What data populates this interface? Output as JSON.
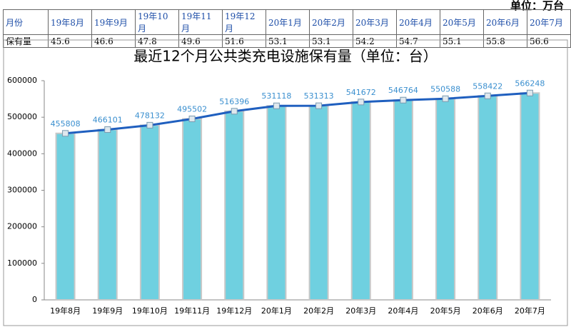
{
  "unit": "单位：万台",
  "table": {
    "rows": [
      [
        "月份",
        "19年8月",
        "19年9月",
        "19年10月",
        "19年11月",
        "19年12月",
        "20年1月",
        "20年2月",
        "20年3月",
        "20年4月",
        "20年5月",
        "20年6月",
        "20年7月"
      ],
      [
        "保有量",
        45.6,
        46.6,
        47.8,
        49.6,
        51.6,
        53.1,
        53.1,
        54.2,
        54.7,
        55.1,
        55.8,
        56.6
      ]
    ]
  },
  "chart_data": {
    "type": "bar",
    "title": "最近12个月公共类充电设施保有量（单位：台）",
    "categories": [
      "19年8月",
      "19年9月",
      "19年10月",
      "19年11月",
      "19年12月",
      "20年1月",
      "20年2月",
      "20年3月",
      "20年4月",
      "20年5月",
      "20年6月",
      "20年7月"
    ],
    "series": [
      {
        "type": "bar",
        "color": "#6fd0e0",
        "values": [
          455808,
          466101,
          478132,
          495502,
          516396,
          531118,
          531313,
          541672,
          546764,
          550588,
          558422,
          566248
        ]
      },
      {
        "type": "line",
        "color": "#1f5fbf",
        "values": [
          455808,
          466101,
          478132,
          495502,
          516396,
          531118,
          531313,
          541672,
          546764,
          550588,
          558422,
          566248
        ]
      }
    ],
    "ylim": [
      0,
      600000
    ],
    "yticks": [
      0,
      100000,
      200000,
      300000,
      400000,
      500000,
      600000
    ]
  }
}
